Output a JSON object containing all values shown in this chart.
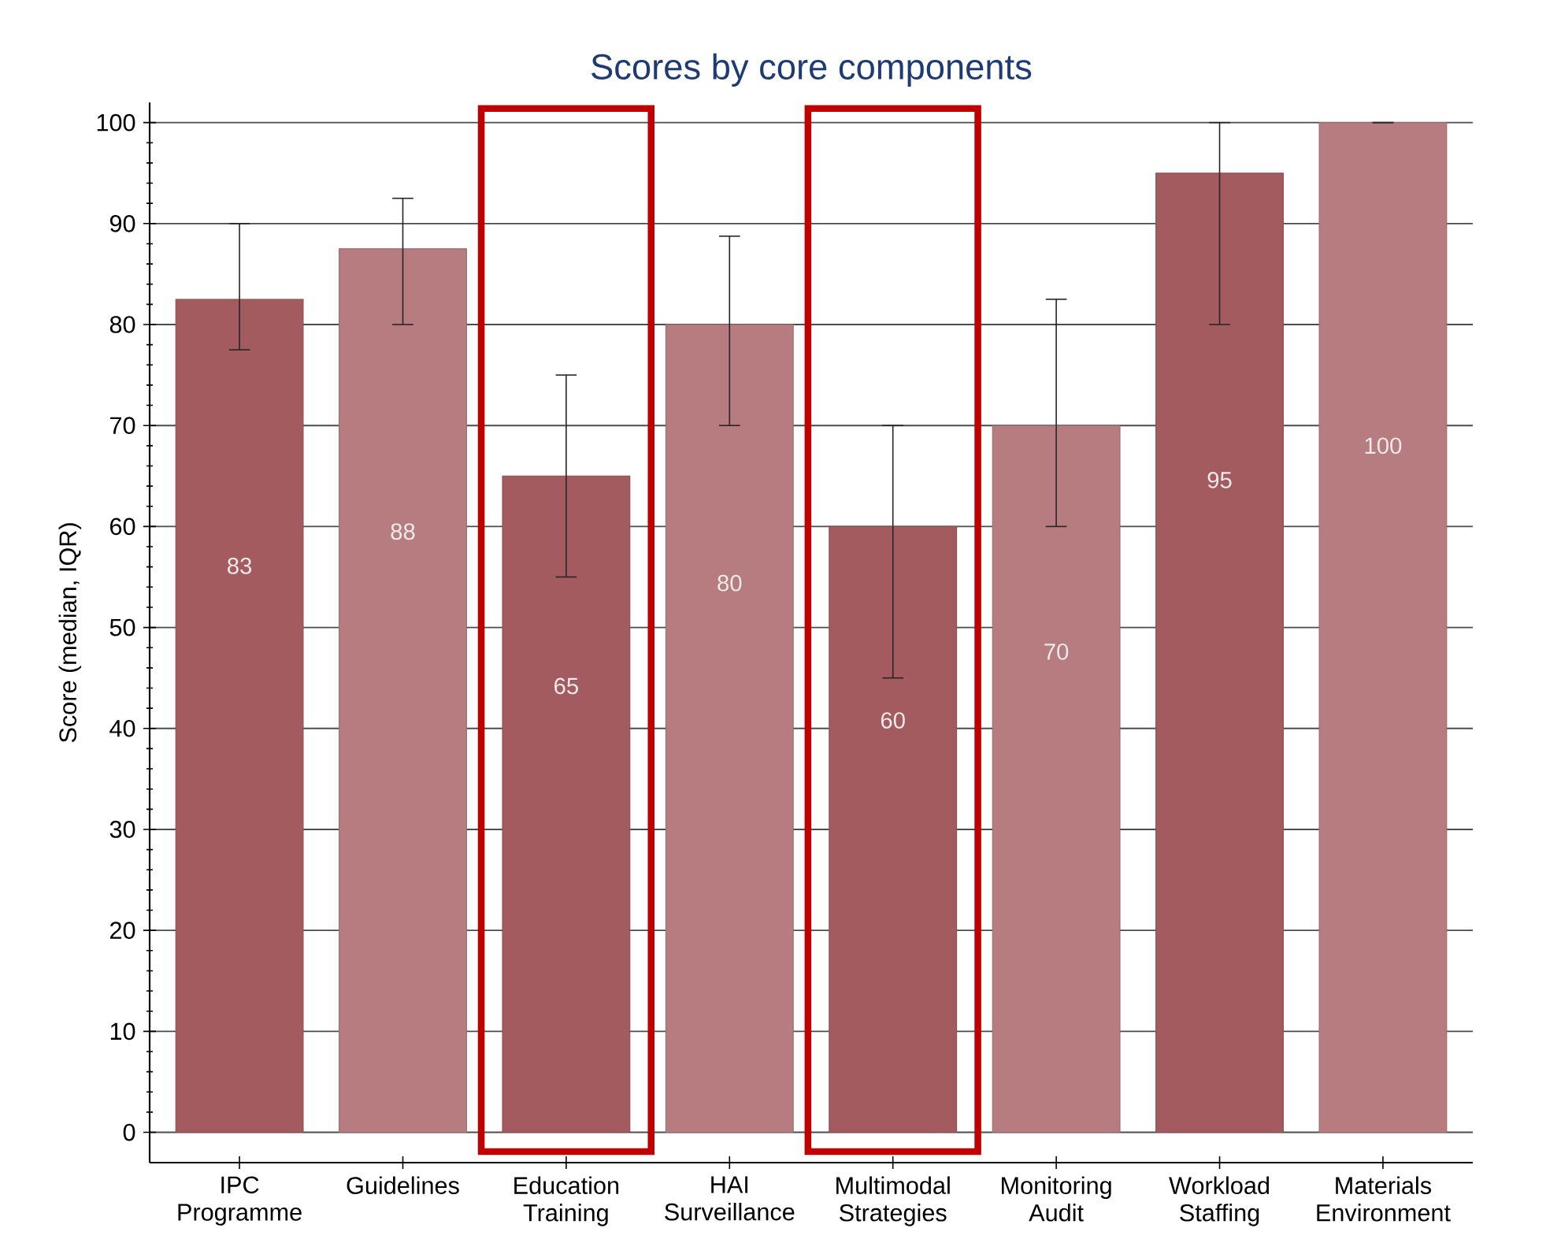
{
  "chart_data": {
    "type": "bar",
    "title": "Scores by core components",
    "ylabel": "Score (median, IQR)",
    "categories": [
      "IPC Programme",
      "Guidelines",
      "Education Training",
      "HAI Surveillance",
      "Multimodal Strategies",
      "Monitoring Audit",
      "Workload Staffing",
      "Materials Environment"
    ],
    "values": [
      82.5,
      87.5,
      65,
      80,
      60,
      70,
      95,
      100
    ],
    "colors": [
      "#a45b60",
      "#b77c80",
      "#a45b60",
      "#b77c80",
      "#a45b60",
      "#b77c80",
      "#a45b60",
      "#b77c80"
    ],
    "errors": [
      [
        77.5,
        90
      ],
      [
        80,
        92.5
      ],
      [
        55,
        75
      ],
      [
        70,
        88.75
      ],
      [
        45,
        70
      ],
      [
        60,
        82.5
      ],
      [
        80,
        100
      ],
      [
        100,
        100
      ]
    ],
    "value_labels": [
      "83",
      "88",
      "65",
      "80",
      "60",
      "70",
      "95",
      "100"
    ],
    "ylim": [
      -3,
      102
    ],
    "yticks": [
      0,
      10,
      20,
      30,
      40,
      50,
      60,
      70,
      80,
      90,
      100
    ],
    "grid": "y"
  }
}
